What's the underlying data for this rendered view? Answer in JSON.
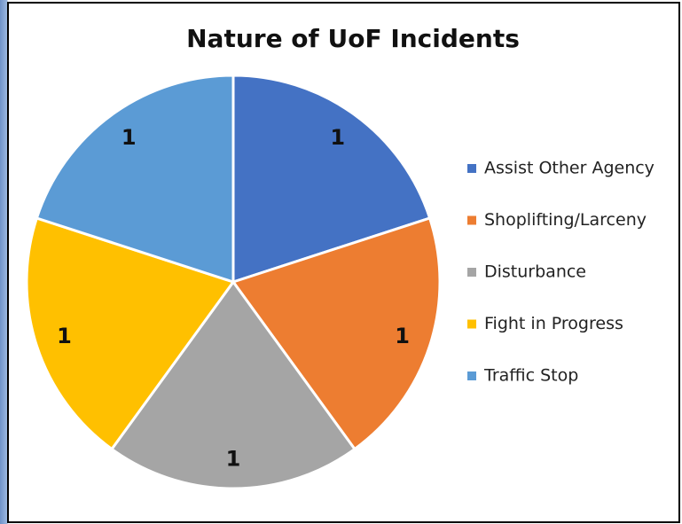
{
  "chart_data": {
    "type": "pie",
    "title": "Nature of UoF Incidents",
    "categories": [
      "Assist Other Agency",
      "Shoplifting/Larceny",
      "Disturbance",
      "Fight in Progress",
      "Traffic Stop"
    ],
    "values": [
      1,
      1,
      1,
      1,
      1
    ],
    "colors": [
      "#4472c4",
      "#ed7d31",
      "#a5a5a5",
      "#ffc000",
      "#5b9bd5"
    ],
    "legend": "right"
  }
}
